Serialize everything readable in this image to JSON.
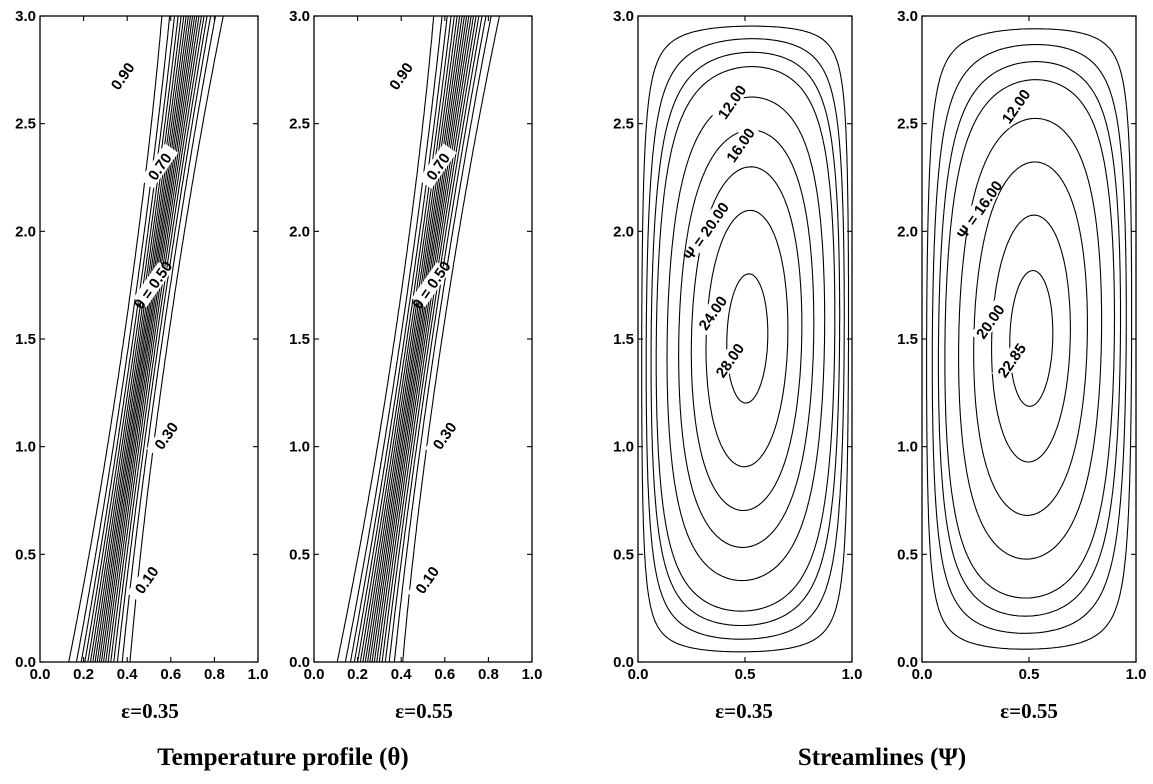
{
  "chart_data": [
    {
      "type": "contour",
      "field": "temperature",
      "caption": "ε=0.35",
      "xlim": [
        0,
        1
      ],
      "ylim": [
        0,
        3
      ],
      "xticks": [
        "0.0",
        "0.2",
        "0.4",
        "0.6",
        "0.8",
        "1.0"
      ],
      "yticks": [
        "0.0",
        "0.5",
        "1.0",
        "1.5",
        "2.0",
        "2.5",
        "3.0"
      ],
      "levels": [
        0.05,
        0.1,
        0.15,
        0.2,
        0.25,
        0.3,
        0.35,
        0.4,
        0.45,
        0.5,
        0.55,
        0.6,
        0.65,
        0.7,
        0.75,
        0.8,
        0.85,
        0.9,
        0.95
      ],
      "labels": [
        {
          "text": "0.90",
          "x": 0.38,
          "y": 2.72
        },
        {
          "text": "0.70",
          "x": 0.55,
          "y": 2.3
        },
        {
          "text": "θ = 0.50",
          "x": 0.52,
          "y": 1.75
        },
        {
          "text": "0.30",
          "x": 0.58,
          "y": 1.05
        },
        {
          "text": "0.10",
          "x": 0.49,
          "y": 0.38
        }
      ]
    },
    {
      "type": "contour",
      "field": "temperature",
      "caption": "ε=0.55",
      "xlim": [
        0,
        1
      ],
      "ylim": [
        0,
        3
      ],
      "xticks": [
        "0.0",
        "0.2",
        "0.4",
        "0.6",
        "0.8",
        "1.0"
      ],
      "yticks": [
        "0.0",
        "0.5",
        "1.0",
        "1.5",
        "2.0",
        "2.5",
        "3.0"
      ],
      "levels": [
        0.05,
        0.1,
        0.15,
        0.2,
        0.25,
        0.3,
        0.35,
        0.4,
        0.45,
        0.5,
        0.55,
        0.6,
        0.65,
        0.7,
        0.75,
        0.8,
        0.85,
        0.9,
        0.95
      ],
      "labels": [
        {
          "text": "0.90",
          "x": 0.4,
          "y": 2.72
        },
        {
          "text": "0.70",
          "x": 0.57,
          "y": 2.3
        },
        {
          "text": "θ = 0.50",
          "x": 0.54,
          "y": 1.75
        },
        {
          "text": "0.30",
          "x": 0.6,
          "y": 1.05
        },
        {
          "text": "0.10",
          "x": 0.52,
          "y": 0.38
        }
      ]
    },
    {
      "type": "contour",
      "field": "streamfunction",
      "caption": "ε=0.35",
      "xlim": [
        0,
        1
      ],
      "ylim": [
        0,
        3
      ],
      "xticks": [
        "0.0",
        "0.5",
        "1.0"
      ],
      "yticks": [
        "0.0",
        "0.5",
        "1.0",
        "1.5",
        "2.0",
        "2.5",
        "3.0"
      ],
      "max": 29.5,
      "levels": [
        2,
        4,
        6,
        8,
        12,
        16,
        20,
        24,
        28
      ],
      "labels": [
        {
          "text": "12.00",
          "x": 0.44,
          "y": 2.6
        },
        {
          "text": "16.00",
          "x": 0.48,
          "y": 2.4
        },
        {
          "text": "Ψ = 20.00",
          "x": 0.32,
          "y": 2.0
        },
        {
          "text": "24.00",
          "x": 0.35,
          "y": 1.62
        },
        {
          "text": "28.00",
          "x": 0.43,
          "y": 1.4
        }
      ]
    },
    {
      "type": "contour",
      "field": "streamfunction",
      "caption": "ε=0.55",
      "xlim": [
        0,
        1
      ],
      "ylim": [
        0,
        3
      ],
      "xticks": [
        "0.0",
        "0.5",
        "1.0"
      ],
      "yticks": [
        "0.0",
        "0.5",
        "1.0",
        "1.5",
        "2.0",
        "2.5",
        "3.0"
      ],
      "max": 24.2,
      "levels": [
        2,
        4,
        6,
        8,
        12,
        16,
        20,
        22.85
      ],
      "labels": [
        {
          "text": "12.00",
          "x": 0.44,
          "y": 2.58
        },
        {
          "text": "Ψ = 16.00",
          "x": 0.27,
          "y": 2.1
        },
        {
          "text": "20.00",
          "x": 0.32,
          "y": 1.58
        },
        {
          "text": "22.85",
          "x": 0.42,
          "y": 1.4
        }
      ]
    }
  ],
  "group_titles": {
    "temperature": "Temperature profile (θ)",
    "streamlines": "Streamlines (Ψ)"
  }
}
